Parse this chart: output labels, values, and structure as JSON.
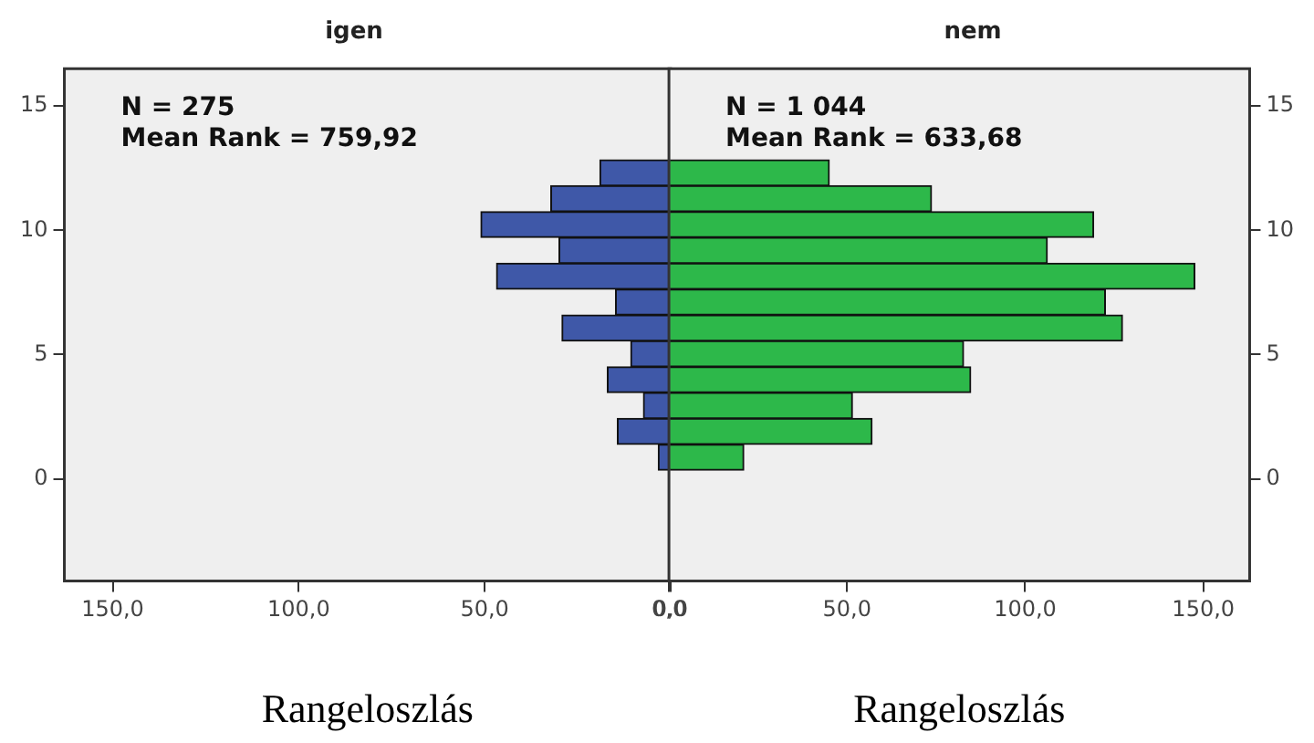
{
  "chart_data": [
    {
      "type": "histogram",
      "orientation": "horizontal",
      "title": "igen",
      "xlabel": "Rangeloszlás",
      "color": "#3f58a8",
      "bins": [
        0.35,
        1.39,
        2.43,
        3.47,
        4.51,
        5.55,
        6.59,
        7.63,
        8.67,
        9.71,
        10.75,
        11.79,
        12.83
      ],
      "values": [
        3.3,
        14.3,
        7.3,
        17,
        10.7,
        29.2,
        14.8,
        46.8,
        30,
        51,
        32.2,
        19
      ],
      "xlim": [
        163,
        0
      ],
      "xticks": [
        {
          "value": 150,
          "label": "150,0"
        },
        {
          "value": 100,
          "label": "100,0"
        },
        {
          "value": 50,
          "label": "50,0"
        },
        {
          "value": 0,
          "label": "0,0"
        }
      ],
      "ylim": [
        -4.1,
        16.5
      ],
      "yticks": [
        0,
        5,
        10,
        15
      ],
      "grid": false,
      "legend": false,
      "annotations": [
        "N = 275",
        "Mean Rank = 759,92"
      ]
    },
    {
      "type": "histogram",
      "orientation": "horizontal",
      "title": "nem",
      "xlabel": "Rangeloszlás",
      "color": "#2db84a",
      "bins": [
        0.35,
        1.39,
        2.43,
        3.47,
        4.51,
        5.55,
        6.59,
        7.63,
        8.67,
        9.71,
        10.75,
        11.79,
        12.83
      ],
      "values": [
        21,
        57,
        51.5,
        84.7,
        82.7,
        127.3,
        122.5,
        147.6,
        106.2,
        119.2,
        73.7,
        45
      ],
      "xlim": [
        0,
        163
      ],
      "xticks": [
        {
          "value": 0,
          "label": "0,0"
        },
        {
          "value": 50,
          "label": "50,0"
        },
        {
          "value": 100,
          "label": "100,0"
        },
        {
          "value": 150,
          "label": "150,0"
        }
      ],
      "ylim": [
        -4.1,
        16.5
      ],
      "yticks": [
        0,
        5,
        10,
        15
      ],
      "grid": false,
      "legend": false,
      "annotations": [
        "N = 1 044",
        "Mean Rank = 633,68"
      ]
    }
  ]
}
